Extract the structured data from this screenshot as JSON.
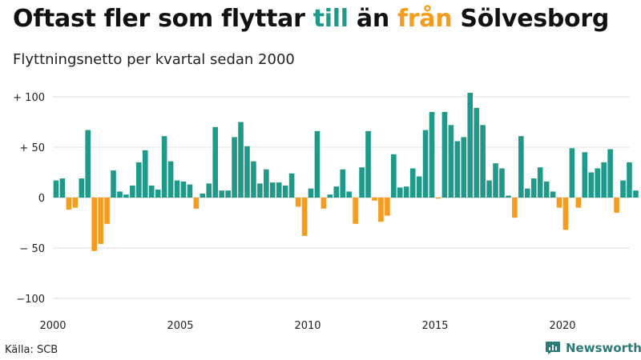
{
  "title": {
    "part1": "Oftast fler som flyttar ",
    "word_to": "till",
    "part2": " än ",
    "word_from": "från",
    "part3": " Sölvesborg"
  },
  "subtitle": "Flyttningsnetto per kvartal sedan 2000",
  "source": "Källa: SCB",
  "brand": "Newsworthy",
  "colors": {
    "positive": "#1f9a8a",
    "negative": "#f39c1f",
    "brand": "#2b7a78"
  },
  "chart_data": {
    "type": "bar",
    "start_year": 2000,
    "ylim": [
      -100,
      110
    ],
    "yticks": [
      100,
      50,
      0,
      -50,
      -100
    ],
    "ytick_labels": [
      "+ 100",
      "+ 50",
      "0",
      "− 50",
      "−100"
    ],
    "xticks": [
      2000,
      2005,
      2010,
      2015,
      2020
    ],
    "grid": true,
    "values": [
      17,
      19,
      -12,
      -10,
      19,
      67,
      -53,
      -46,
      -26,
      27,
      6,
      3,
      12,
      35,
      47,
      12,
      8,
      61,
      36,
      17,
      16,
      13,
      -11,
      4,
      14,
      70,
      7,
      7,
      60,
      75,
      51,
      36,
      14,
      28,
      15,
      15,
      12,
      24,
      -9,
      -38,
      9,
      66,
      -11,
      3,
      11,
      28,
      6,
      -26,
      30,
      66,
      -3,
      -24,
      -18,
      43,
      10,
      11,
      29,
      21,
      67,
      85,
      -1,
      85,
      72,
      56,
      60,
      104,
      89,
      72,
      17,
      34,
      29,
      2,
      -20,
      61,
      9,
      19,
      30,
      16,
      6,
      -10,
      -32,
      49,
      -10,
      45,
      25,
      29,
      35,
      48,
      -15,
      17,
      35,
      7
    ]
  }
}
